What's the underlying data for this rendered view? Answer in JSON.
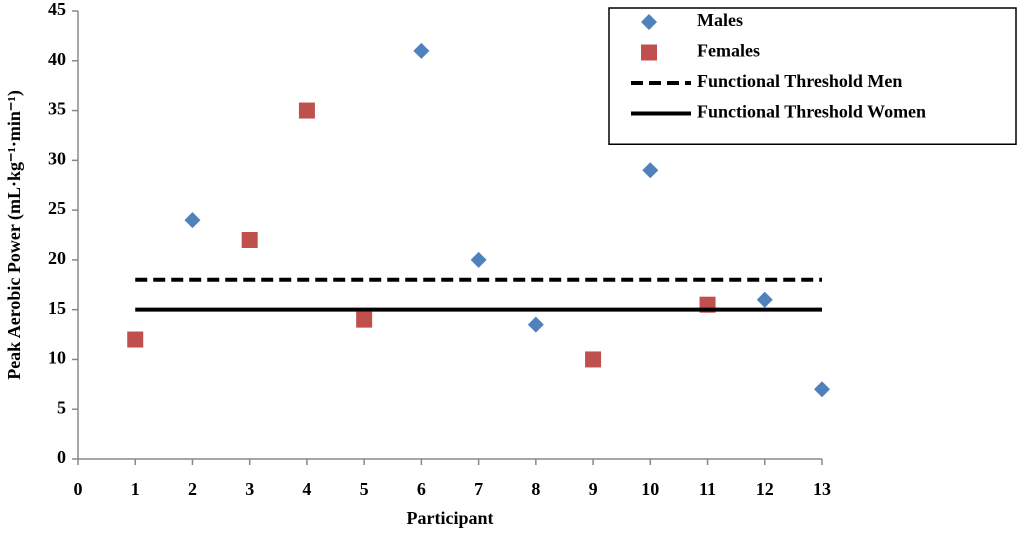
{
  "chart_data": {
    "type": "scatter",
    "xlabel": "Participant",
    "ylabel": "Peak Aerobic Power (mL·kg⁻¹·min⁻¹)",
    "xlim": [
      0,
      13
    ],
    "xticks": [
      0,
      1,
      2,
      3,
      4,
      5,
      6,
      7,
      8,
      9,
      10,
      11,
      12,
      13
    ],
    "ylim": [
      0,
      45
    ],
    "yticks": [
      0,
      5,
      10,
      15,
      20,
      25,
      30,
      35,
      40,
      45
    ],
    "grid": false,
    "legend": "upper right",
    "series": [
      {
        "name": "Males",
        "color": "#4f81bd",
        "marker": "diamond",
        "x": [
          2,
          6,
          7,
          8,
          10,
          12,
          13
        ],
        "values": [
          24,
          41,
          20,
          13.5,
          29,
          16,
          7
        ]
      },
      {
        "name": "Females",
        "color": "#c0504d",
        "marker": "square",
        "x": [
          1,
          3,
          4,
          5,
          9,
          11
        ],
        "values": [
          12,
          22,
          35,
          14,
          10,
          15.5
        ]
      },
      {
        "name": "Functional Threshold Men",
        "color": "#000000",
        "style": "dashed",
        "x": [
          1,
          13
        ],
        "values": [
          18,
          18
        ]
      },
      {
        "name": "Functional Threshold Women",
        "color": "#000000",
        "style": "solid",
        "x": [
          1,
          13
        ],
        "values": [
          15,
          15
        ]
      }
    ]
  }
}
